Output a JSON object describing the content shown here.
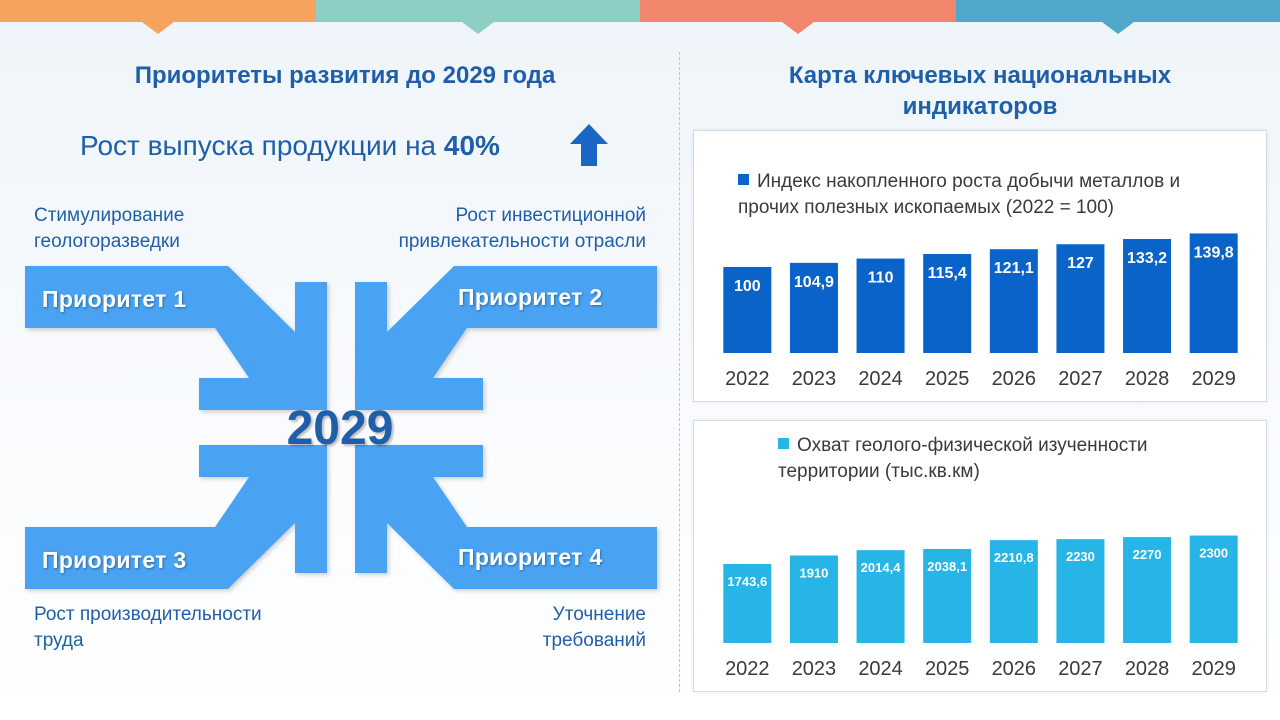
{
  "colors": {
    "top_bar": [
      "#f6a45d",
      "#8ecfc5",
      "#f1866c",
      "#4fa8c9"
    ],
    "heading": "#1f5fa9",
    "arrow": "#4aa3f2",
    "bar_dark": "#0a63c8",
    "bar_light": "#27b4e6"
  },
  "left": {
    "title": "Приоритеты развития до 2029 года",
    "growth_text": "Рост выпуска продукции на ",
    "growth_value": "40%",
    "growth_icon": "up-arrow-icon",
    "center_year": "2029",
    "priorities": [
      {
        "label": "Приоритет 1",
        "note": "Стимулирование геологоразведки"
      },
      {
        "label": "Приоритет 2",
        "note": "Рост инвестиционной привлекательности отрасли"
      },
      {
        "label": "Приоритет 3",
        "note": "Рост производительности труда"
      },
      {
        "label": "Приоритет 4",
        "note": "Уточнение требований"
      }
    ]
  },
  "right": {
    "title": "Карта ключевых национальных индикаторов"
  },
  "chart_data": [
    {
      "type": "bar",
      "legend": "Индекс накопленного роста добычи металлов и прочих полезных ископаемых (2022 = 100)",
      "categories": [
        "2022",
        "2023",
        "2024",
        "2025",
        "2026",
        "2027",
        "2028",
        "2029"
      ],
      "values": [
        100,
        104.9,
        110,
        115.4,
        121.1,
        127,
        133.2,
        139.8
      ],
      "labels": [
        "100",
        "104,9",
        "110",
        "115,4",
        "121,1",
        "127",
        "133,2",
        "139,8"
      ],
      "color": "#0a63c8"
    },
    {
      "type": "bar",
      "legend": "Охват геолого-физической изученности территории (тыс.кв.км)",
      "categories": [
        "2022",
        "2023",
        "2024",
        "2025",
        "2026",
        "2027",
        "2028",
        "2029"
      ],
      "values": [
        1743.6,
        1910,
        2014.4,
        2038.1,
        2210.8,
        2230,
        2270,
        2300
      ],
      "labels": [
        "1743,6",
        "1910",
        "2014,4",
        "2038,1",
        "2210,8",
        "2230",
        "2270",
        "2300"
      ],
      "color": "#27b4e6"
    }
  ]
}
